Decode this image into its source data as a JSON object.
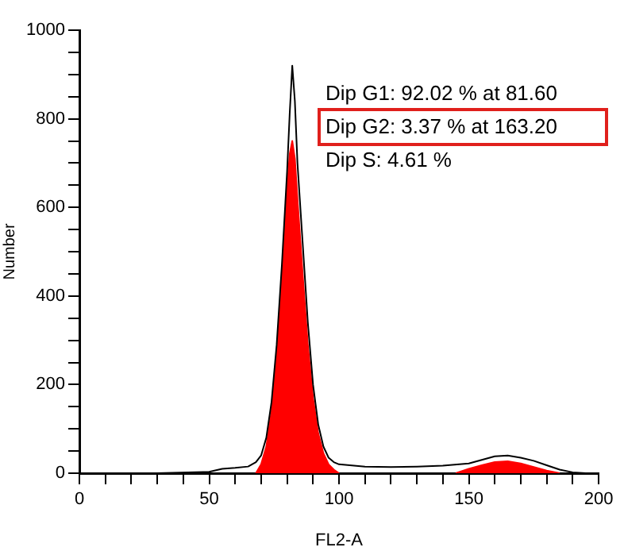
{
  "chart_data": {
    "type": "line",
    "xlabel": "FL2-A",
    "ylabel": "Number",
    "xlim": [
      0,
      200
    ],
    "ylim": [
      0,
      1000
    ],
    "xticks": [
      0,
      {
        "value": 10,
        "label": null
      },
      {
        "value": 20,
        "label": null
      },
      {
        "value": 30,
        "label": null
      },
      {
        "value": 40,
        "label": null
      },
      50,
      {
        "value": 60,
        "label": null
      },
      {
        "value": 70,
        "label": null
      },
      {
        "value": 80,
        "label": null
      },
      {
        "value": 90,
        "label": null
      },
      100,
      {
        "value": 110,
        "label": null
      },
      {
        "value": 120,
        "label": null
      },
      {
        "value": 130,
        "label": null
      },
      {
        "value": 140,
        "label": null
      },
      150,
      {
        "value": 160,
        "label": null
      },
      {
        "value": 170,
        "label": null
      },
      {
        "value": 180,
        "label": null
      },
      {
        "value": 190,
        "label": null
      },
      200
    ],
    "yticks": [
      0,
      {
        "value": 50,
        "label": null
      },
      {
        "value": 100,
        "label": null
      },
      {
        "value": 150,
        "label": null
      },
      200,
      {
        "value": 250,
        "label": null
      },
      {
        "value": 300,
        "label": null
      },
      {
        "value": 350,
        "label": null
      },
      400,
      {
        "value": 450,
        "label": null
      },
      {
        "value": 500,
        "label": null
      },
      {
        "value": 550,
        "label": null
      },
      600,
      {
        "value": 650,
        "label": null
      },
      {
        "value": 700,
        "label": null
      },
      {
        "value": 750,
        "label": null
      },
      800,
      {
        "value": 850,
        "label": null
      },
      {
        "value": 900,
        "label": null
      },
      {
        "value": 950,
        "label": null
      },
      1000
    ],
    "series": [
      {
        "type": "area",
        "color": "#ff0000",
        "x": [
          68,
          70,
          72,
          74,
          76,
          78,
          80,
          81,
          82,
          83,
          84,
          86,
          88,
          90,
          92,
          94,
          96,
          98,
          100,
          120,
          145,
          150,
          155,
          160,
          165,
          170,
          175,
          180,
          185
        ],
        "values": [
          0,
          20,
          60,
          140,
          260,
          430,
          640,
          720,
          750,
          710,
          620,
          450,
          290,
          170,
          90,
          45,
          20,
          8,
          0,
          null,
          0,
          10,
          18,
          25,
          27,
          22,
          14,
          6,
          0
        ]
      },
      {
        "color": "#000000",
        "x": [
          0,
          30,
          50,
          55,
          60,
          65,
          68,
          70,
          72,
          74,
          76,
          78,
          80,
          81,
          82,
          83,
          84,
          86,
          88,
          90,
          92,
          94,
          96,
          98,
          100,
          110,
          120,
          130,
          140,
          150,
          155,
          160,
          165,
          170,
          175,
          180,
          185,
          190,
          195,
          200
        ],
        "values": [
          0,
          0,
          3,
          10,
          12,
          15,
          25,
          40,
          80,
          160,
          290,
          470,
          680,
          810,
          920,
          840,
          700,
          520,
          340,
          200,
          110,
          60,
          35,
          25,
          20,
          15,
          14,
          15,
          17,
          22,
          30,
          38,
          40,
          35,
          28,
          18,
          8,
          2,
          0,
          0
        ]
      }
    ],
    "annotations": [
      "Dip G1: 92.02 % at 81.60",
      "Dip G2: 3.37 % at 163.20",
      "Dip S: 4.61 %"
    ],
    "legend": false
  }
}
